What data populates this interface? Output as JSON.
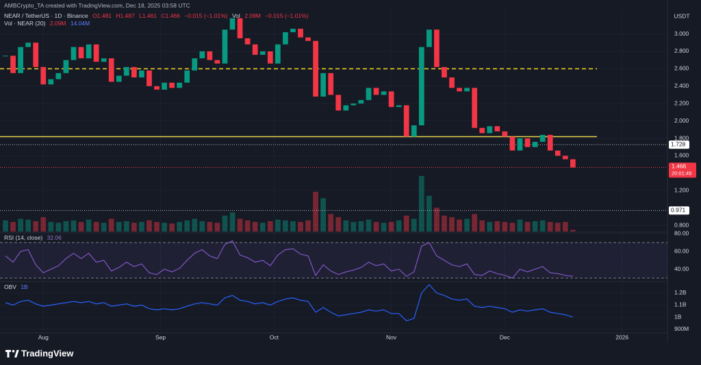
{
  "header": {
    "author": "AMBCrypto_TA created with TradingView.com, Dec 18, 2025 03:58 UTC",
    "symbol": "NEAR / TetherUS · 1D · Binance",
    "ohlc": [
      "O1.481",
      "H1.487",
      "L1.461",
      "C1.466",
      "−0.015 (−1.01%)"
    ],
    "vol": [
      "Vol",
      "2.09M",
      "−0.015 (−1.01%)"
    ],
    "volume_legend": [
      "Vol · NEAR (20)",
      "2.09M",
      "14.04M"
    ],
    "currency": "USDT",
    "countdown": "20:01:49"
  },
  "brand": "TradingView",
  "chart_data": [
    {
      "type": "candlestick",
      "up_color": "#089981",
      "down_color": "#f23645",
      "values": [
        2.75,
        2.55,
        2.85,
        2.9,
        2.62,
        2.42,
        2.48,
        2.55,
        2.7,
        2.85,
        2.72,
        2.88,
        2.68,
        2.72,
        2.45,
        2.52,
        2.62,
        2.5,
        2.58,
        2.4,
        2.36,
        2.44,
        2.38,
        2.44,
        2.58,
        2.72,
        2.8,
        2.7,
        2.66,
        3.05,
        3.18,
        2.95,
        2.88,
        2.76,
        2.8,
        2.66,
        2.88,
        3.02,
        3.06,
        2.96,
        2.92,
        2.28,
        2.55,
        2.3,
        2.12,
        2.18,
        2.2,
        2.24,
        2.38,
        2.3,
        2.34,
        2.16,
        2.18,
        1.82,
        1.95,
        2.85,
        3.05,
        2.62,
        2.5,
        2.38,
        2.34,
        2.38,
        1.92,
        1.86,
        1.94,
        1.88,
        1.82,
        1.66,
        1.8,
        1.7,
        1.76,
        1.84,
        1.66,
        1.6,
        1.56,
        1.466
      ],
      "volume": [
        14,
        12,
        16,
        15,
        13,
        18,
        12,
        11,
        13,
        14,
        12,
        15,
        12,
        11,
        16,
        12,
        13,
        11,
        12,
        14,
        12,
        11,
        10,
        12,
        14,
        16,
        13,
        12,
        11,
        20,
        24,
        16,
        14,
        12,
        11,
        13,
        15,
        14,
        13,
        12,
        14,
        50,
        42,
        22,
        18,
        14,
        12,
        13,
        15,
        12,
        11,
        12,
        14,
        20,
        16,
        70,
        45,
        30,
        20,
        18,
        15,
        16,
        22,
        14,
        12,
        13,
        12,
        11,
        15,
        12,
        13,
        14,
        12,
        11,
        12,
        2.09
      ],
      "volume_ylim": [
        0,
        280
      ],
      "ylim": [
        0.73,
        3.28
      ],
      "yticks": [
        {
          "value": 3.0,
          "label": "3.000"
        },
        {
          "value": 2.8,
          "label": "2.800"
        },
        {
          "value": 2.6,
          "label": "2.600"
        },
        {
          "value": 2.4,
          "label": "2.400"
        },
        {
          "value": 2.2,
          "label": "2.200"
        },
        {
          "value": 2.0,
          "label": "2.000"
        },
        {
          "value": 1.8,
          "label": "1.800"
        },
        {
          "value": 1.6,
          "label": "1.600"
        },
        {
          "value": 1.2,
          "label": "1.200"
        },
        {
          "value": 0.8,
          "label": "0.800"
        }
      ],
      "xlim": [
        0,
        87.5
      ],
      "xticks": [
        {
          "value": 5,
          "label": "Aug"
        },
        {
          "value": 20.5,
          "label": "Sep"
        },
        {
          "value": 35.5,
          "label": "Oct"
        },
        {
          "value": 51,
          "label": "Nov"
        },
        {
          "value": 66,
          "label": "Dec"
        },
        {
          "value": 81.5,
          "label": "2026"
        }
      ],
      "levels": [
        {
          "value": 2.6,
          "style": "dashed",
          "color": "#e8c81e"
        },
        {
          "value": 1.82,
          "style": "solid",
          "color": "#e8d34a"
        }
      ],
      "price_lines": [
        1.728,
        0.971
      ]
    },
    {
      "type": "line",
      "title": "RSI (14, close)",
      "color": "#7e57c2",
      "values": [
        55,
        48,
        60,
        62,
        45,
        36,
        40,
        44,
        52,
        58,
        52,
        58,
        48,
        50,
        38,
        42,
        48,
        43,
        46,
        36,
        34,
        40,
        37,
        41,
        50,
        58,
        62,
        55,
        52,
        68,
        72,
        56,
        53,
        48,
        50,
        44,
        56,
        62,
        63,
        57,
        55,
        33,
        45,
        38,
        34,
        37,
        39,
        42,
        48,
        44,
        46,
        38,
        40,
        32,
        37,
        66,
        70,
        55,
        50,
        45,
        43,
        46,
        34,
        33,
        38,
        35,
        33,
        30,
        40,
        37,
        40,
        43,
        36,
        35,
        33,
        32.06
      ],
      "ylim": [
        27,
        81
      ],
      "band": [
        30,
        70
      ],
      "yticks": [
        {
          "value": 80,
          "label": "80.00"
        },
        {
          "value": 60,
          "label": "60.00"
        },
        {
          "value": 40,
          "label": "40.00"
        }
      ]
    },
    {
      "type": "line",
      "title": "OBV",
      "value_label": "1B",
      "color": "#2962ff",
      "values": [
        1.12,
        1.1,
        1.13,
        1.14,
        1.11,
        1.09,
        1.1,
        1.11,
        1.12,
        1.13,
        1.12,
        1.13,
        1.11,
        1.12,
        1.09,
        1.1,
        1.11,
        1.09,
        1.1,
        1.07,
        1.06,
        1.07,
        1.06,
        1.07,
        1.09,
        1.11,
        1.12,
        1.11,
        1.1,
        1.16,
        1.18,
        1.14,
        1.13,
        1.11,
        1.12,
        1.1,
        1.13,
        1.15,
        1.16,
        1.14,
        1.13,
        1.04,
        1.08,
        1.04,
        1.01,
        1.02,
        1.03,
        1.04,
        1.06,
        1.05,
        1.06,
        1.03,
        1.03,
        0.97,
        0.99,
        1.2,
        1.27,
        1.2,
        1.18,
        1.15,
        1.14,
        1.15,
        1.09,
        1.08,
        1.09,
        1.08,
        1.07,
        1.04,
        1.06,
        1.05,
        1.06,
        1.07,
        1.04,
        1.03,
        1.02,
        1.0
      ],
      "ylim": [
        0.87,
        1.29
      ],
      "yticks": [
        {
          "value": 1.2,
          "label": "1.2B"
        },
        {
          "value": 1.1,
          "label": "1.1B"
        },
        {
          "value": 1.0,
          "label": "1B"
        },
        {
          "value": 0.9,
          "label": "900M"
        }
      ]
    }
  ]
}
